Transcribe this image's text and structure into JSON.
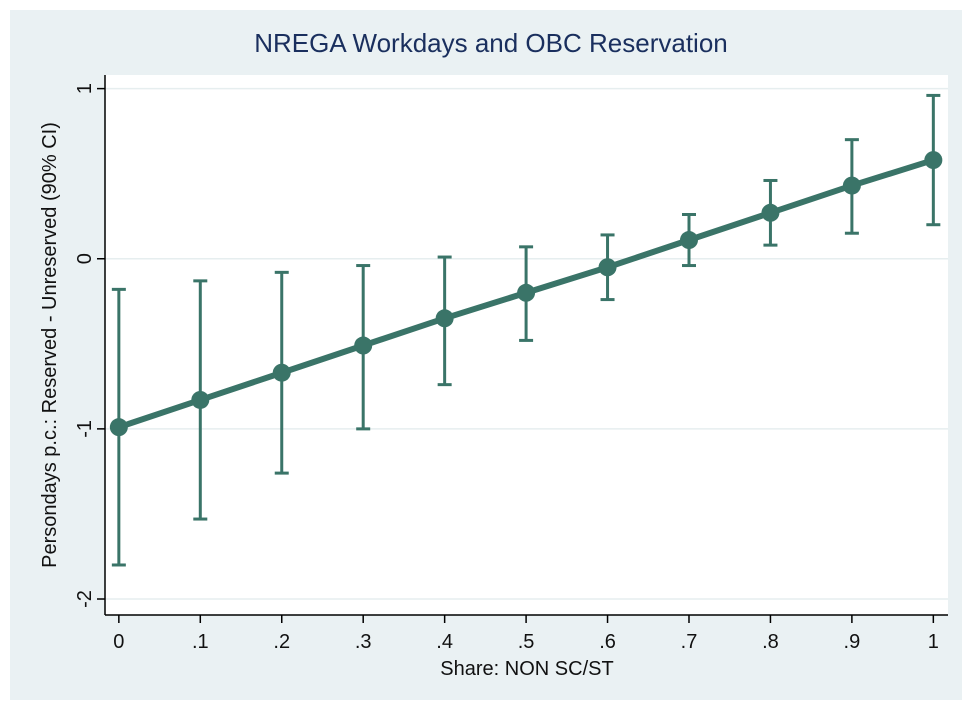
{
  "chart_data": {
    "type": "line",
    "title": "NREGA Workdays and OBC Reservation",
    "x_label": "Share: NON SC/ST",
    "y_label": "Persondays p.c.: Reserved - Unreserved (90% CI)",
    "x": [
      0,
      0.1,
      0.2,
      0.3,
      0.4,
      0.5,
      0.6,
      0.7,
      0.8,
      0.9,
      1
    ],
    "series": [
      {
        "color": "#3a7468",
        "values": [
          -0.99,
          -0.83,
          -0.67,
          -0.51,
          -0.35,
          -0.2,
          -0.05,
          0.11,
          0.27,
          0.43,
          0.58
        ],
        "lower": [
          -1.8,
          -1.53,
          -1.26,
          -1.0,
          -0.74,
          -0.48,
          -0.24,
          -0.04,
          0.08,
          0.15,
          0.2
        ],
        "upper": [
          -0.18,
          -0.13,
          -0.08,
          -0.04,
          0.01,
          0.07,
          0.14,
          0.26,
          0.46,
          0.7,
          0.96
        ]
      }
    ],
    "xlim": [
      -0.017,
      1.018
    ],
    "ylim": [
      -2.094,
      1.08
    ],
    "xticks": [
      0,
      {
        "value": 0.1,
        "label": ".1"
      },
      {
        "value": 0.2,
        "label": ".2"
      },
      {
        "value": 0.3,
        "label": ".3"
      },
      {
        "value": 0.4,
        "label": ".4"
      },
      {
        "value": 0.5,
        "label": ".5"
      },
      {
        "value": 0.6,
        "label": ".6"
      },
      {
        "value": 0.7,
        "label": ".7"
      },
      {
        "value": 0.8,
        "label": ".8"
      },
      {
        "value": 0.9,
        "label": ".9"
      },
      1
    ],
    "yticks": [
      -2,
      -1,
      0,
      1
    ],
    "grid": true
  }
}
